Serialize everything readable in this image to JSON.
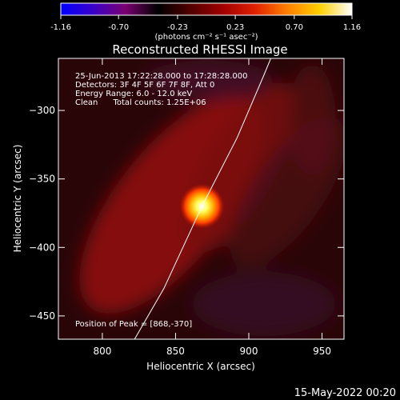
{
  "chart_data": {
    "type": "heatmap",
    "title": "Reconstructed RHESSI Image",
    "xlabel": "Heliocentric X (arcsec)",
    "ylabel": "Heliocentric Y (arcsec)",
    "xlim": [
      770,
      965
    ],
    "ylim": [
      -467,
      -262
    ],
    "x_ticks": [
      800,
      850,
      900,
      950
    ],
    "y_ticks": [
      -300,
      -350,
      -400,
      -450
    ],
    "colorbar": {
      "min": -1.16,
      "max": 1.16,
      "tick_labels": [
        "-1.16",
        "-0.70",
        "-0.23",
        "0.23",
        "0.70",
        "1.16"
      ],
      "tick_values": [
        -1.16,
        -0.7,
        -0.23,
        0.23,
        0.7,
        1.16
      ],
      "units_label": "(photons cm⁻² s⁻¹ asec⁻²)",
      "colors": [
        "#0000ff",
        "#3a00c8",
        "#7a0070",
        "#000000",
        "#500000",
        "#a00000",
        "#e02000",
        "#ff8000",
        "#ffd000",
        "#ffffff"
      ]
    },
    "peak": {
      "x": 868,
      "y": -370,
      "value": 1.16
    },
    "limb_curve": [
      [
        822,
        -467
      ],
      [
        842,
        -430
      ],
      [
        868,
        -370
      ],
      [
        892,
        -320
      ],
      [
        910,
        -275
      ],
      [
        915,
        -262
      ]
    ],
    "annotations": [
      "25-Jun-2013 17:22:28.000 to 17:28:28.000",
      "Detectors: 3F 4F 5F 6F 7F 8F, Att 0",
      "Energy Range: 6.0 - 12.0 keV",
      "Clean      Total counts: 1.25E+06",
      "Position of Peak = [868,-370]"
    ],
    "timestamp": "15-May-2022 00:20"
  }
}
